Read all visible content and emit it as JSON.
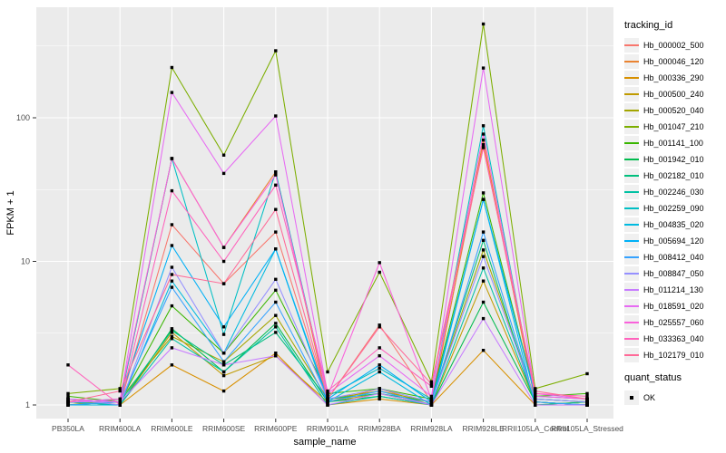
{
  "figure": {
    "background": "#FFFFFF",
    "panel_background": "#EBEBEB",
    "grid_color": "#FFFFFF",
    "axis_text_color": "#4D4D4D",
    "point_color": "#000000"
  },
  "axes": {
    "x_title": "sample_name",
    "y_title": "FPKM + 1",
    "y_tick_labels": [
      "1",
      "10",
      "100"
    ]
  },
  "legend": {
    "tracking_title": "tracking_id",
    "quant_title": "quant_status",
    "quant_items": [
      {
        "label": "OK",
        "shape": "black-square",
        "color": "#000000"
      }
    ]
  },
  "chart_data": {
    "type": "line",
    "title": "",
    "xlabel": "sample_name",
    "ylabel": "FPKM + 1",
    "y_scale": "log10",
    "ylim": [
      0.85,
      570
    ],
    "y_ticks": [
      1,
      10,
      100
    ],
    "y_minor_ticks": [
      3.1623,
      31.623,
      316.23
    ],
    "grid": true,
    "legend_position": "right",
    "point_marker": "black square (quant_status = OK)",
    "categories": [
      "PB350LA",
      "RRIM600LA",
      "RRIM600LE",
      "RRIM600SE",
      "RRIM600PE",
      "RRIM901LA",
      "RRIM928BA",
      "RRIM928LA",
      "RRIM928LE",
      "RRII105LA_Control",
      "RRII105LA_Stressed"
    ],
    "series": [
      {
        "name": "Hb_000002_500",
        "color": "#F8766D",
        "values": [
          1.05,
          1.0,
          18.0,
          7.0,
          16.0,
          1.1,
          3.6,
          1.05,
          65,
          1.1,
          1.05
        ]
      },
      {
        "name": "Hb_000046_120",
        "color": "#EA8331",
        "values": [
          1.0,
          1.05,
          52.0,
          12.5,
          42.0,
          1.05,
          1.3,
          1.0,
          70,
          1.05,
          1.0
        ]
      },
      {
        "name": "Hb_000336_290",
        "color": "#D89000",
        "values": [
          1.05,
          1.0,
          1.9,
          1.25,
          2.3,
          1.0,
          1.1,
          1.0,
          2.4,
          1.0,
          1.05
        ]
      },
      {
        "name": "Hb_000500_240",
        "color": "#C09B00",
        "values": [
          1.1,
          1.0,
          3.2,
          1.6,
          2.2,
          1.05,
          1.2,
          1.0,
          7.3,
          1.05,
          1.0
        ]
      },
      {
        "name": "Hb_000520_040",
        "color": "#A3A500",
        "values": [
          1.0,
          1.1,
          3.0,
          2.0,
          4.2,
          1.1,
          1.25,
          1.05,
          12.0,
          1.1,
          1.05
        ]
      },
      {
        "name": "Hb_001047_210",
        "color": "#7CAE00",
        "values": [
          1.2,
          1.3,
          224,
          55,
          293,
          1.7,
          8.4,
          1.45,
          450,
          1.3,
          1.65
        ]
      },
      {
        "name": "Hb_001141_100",
        "color": "#39B600",
        "values": [
          1.15,
          1.05,
          4.9,
          2.3,
          6.3,
          1.2,
          1.3,
          1.1,
          30,
          1.15,
          1.2
        ]
      },
      {
        "name": "Hb_001942_010",
        "color": "#00BB4E",
        "values": [
          1.05,
          1.0,
          3.4,
          1.7,
          3.7,
          1.05,
          1.15,
          1.0,
          5.2,
          1.05,
          1.0
        ]
      },
      {
        "name": "Hb_002182_010",
        "color": "#00BF7D",
        "values": [
          1.0,
          1.05,
          3.3,
          1.9,
          3.2,
          1.1,
          1.2,
          1.05,
          14.0,
          1.0,
          1.05
        ]
      },
      {
        "name": "Hb_002246_030",
        "color": "#00C1A3",
        "values": [
          1.05,
          1.0,
          2.9,
          1.7,
          3.5,
          1.0,
          1.15,
          1.0,
          9.0,
          1.05,
          1.0
        ]
      },
      {
        "name": "Hb_002259_090",
        "color": "#00BFC4",
        "values": [
          1.1,
          1.05,
          52.0,
          3.1,
          42.0,
          1.15,
          1.8,
          1.1,
          88,
          1.1,
          1.05
        ]
      },
      {
        "name": "Hb_004835_020",
        "color": "#00BAE0",
        "values": [
          1.0,
          1.0,
          7.3,
          2.3,
          12.2,
          1.05,
          1.7,
          1.0,
          27,
          1.0,
          1.0
        ]
      },
      {
        "name": "Hb_005694_120",
        "color": "#00B0F6",
        "values": [
          1.05,
          1.1,
          12.9,
          3.5,
          12.2,
          1.1,
          1.9,
          1.05,
          27,
          1.15,
          1.1
        ]
      },
      {
        "name": "Hb_008412_040",
        "color": "#35A2FF",
        "values": [
          1.0,
          1.05,
          6.6,
          2.0,
          5.2,
          1.05,
          1.25,
          1.0,
          16.0,
          1.05,
          1.0
        ]
      },
      {
        "name": "Hb_008847_050",
        "color": "#9590FF",
        "values": [
          1.1,
          1.0,
          9.1,
          2.3,
          7.5,
          1.1,
          1.3,
          1.05,
          10.8,
          1.1,
          1.05
        ]
      },
      {
        "name": "Hb_011214_130",
        "color": "#C77CFF",
        "values": [
          1.05,
          1.05,
          2.5,
          1.9,
          2.2,
          1.0,
          1.2,
          1.0,
          4.0,
          1.0,
          1.0
        ]
      },
      {
        "name": "Hb_018591_020",
        "color": "#E76BF3",
        "values": [
          1.1,
          1.05,
          150,
          41,
          103,
          1.2,
          2.2,
          1.15,
          222,
          1.2,
          1.1
        ]
      },
      {
        "name": "Hb_025557_060",
        "color": "#FA62DB",
        "values": [
          1.05,
          1.1,
          52.0,
          12.5,
          40.0,
          1.15,
          9.8,
          1.1,
          77,
          1.15,
          1.1
        ]
      },
      {
        "name": "Hb_033363_040",
        "color": "#FF62BC",
        "values": [
          1.9,
          1.0,
          31.0,
          10.0,
          34.0,
          1.25,
          2.5,
          1.35,
          62,
          1.2,
          1.15
        ]
      },
      {
        "name": "Hb_102179_010",
        "color": "#FF6A98",
        "values": [
          1.05,
          1.25,
          8.1,
          7.0,
          23.0,
          1.1,
          3.5,
          1.4,
          62,
          1.25,
          1.1
        ]
      }
    ]
  }
}
